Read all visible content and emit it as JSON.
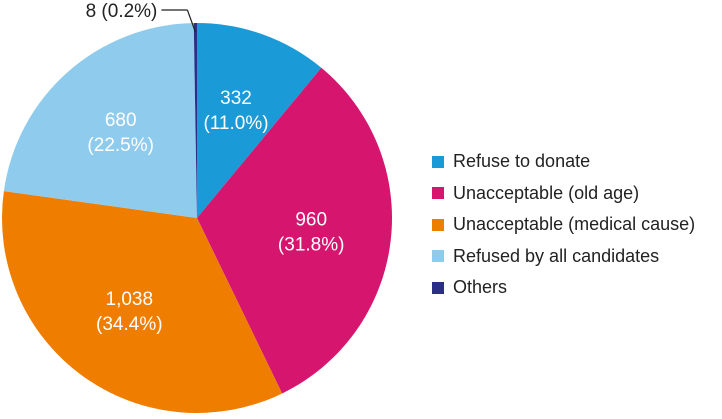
{
  "chart_data": {
    "type": "pie",
    "slices": [
      {
        "name": "Refuse to donate",
        "value": 332,
        "percent": 11.0,
        "value_label": "332",
        "percent_label": "(11.0%)",
        "color": "#1a9ad6"
      },
      {
        "name": "Unacceptable (old age)",
        "value": 960,
        "percent": 31.8,
        "value_label": "960",
        "percent_label": "(31.8%)",
        "color": "#d6166e"
      },
      {
        "name": "Unacceptable (medical cause)",
        "value": 1038,
        "percent": 34.4,
        "value_label": "1,038",
        "percent_label": "(34.4%)",
        "color": "#ef7d00"
      },
      {
        "name": "Refused by all candidates",
        "value": 680,
        "percent": 22.5,
        "value_label": "680",
        "percent_label": "(22.5%)",
        "color": "#8ecbed"
      },
      {
        "name": "Others",
        "value": 8,
        "percent": 0.2,
        "value_label": "8",
        "percent_label": "(0.2%)",
        "color": "#2b2f86"
      }
    ],
    "callout_label": "8 (0.2%)",
    "legend_position": "right",
    "start_angle": "12 o'clock",
    "direction": "clockwise"
  }
}
